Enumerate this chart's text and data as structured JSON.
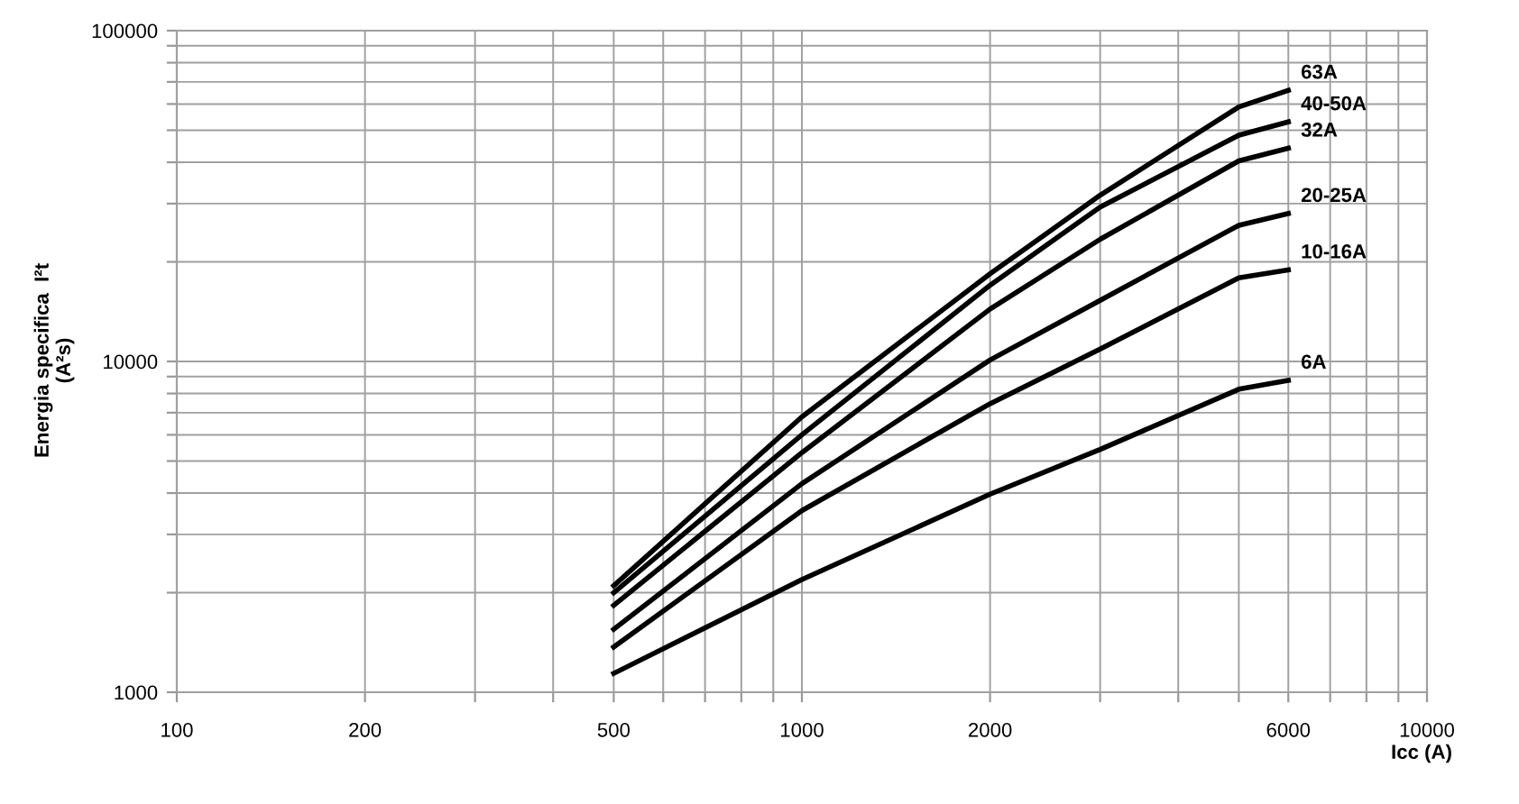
{
  "chart_data": {
    "type": "line",
    "xlabel": "Icc (A)",
    "ylabel": "Energia specifica  I²t\n(A²s)",
    "log": "xy",
    "grid": true,
    "legend": false,
    "marker": "none",
    "line_style": "solid",
    "xlim": [
      100,
      10000
    ],
    "ylim": [
      1000,
      100000
    ],
    "xticks": [
      100,
      200,
      {
        "value": 300,
        "label": null
      },
      {
        "value": 400,
        "label": null
      },
      500,
      {
        "value": 600,
        "label": null
      },
      {
        "value": 700,
        "label": null
      },
      {
        "value": 800,
        "label": null
      },
      {
        "value": 900,
        "label": null
      },
      1000,
      2000,
      {
        "value": 3000,
        "label": null
      },
      {
        "value": 4000,
        "label": null
      },
      {
        "value": 5000,
        "label": null
      },
      6000,
      {
        "value": 7000,
        "label": null
      },
      {
        "value": 8000,
        "label": null
      },
      {
        "value": 9000,
        "label": null
      },
      10000
    ],
    "yticks": [
      1000,
      {
        "value": 2000,
        "label": null
      },
      {
        "value": 3000,
        "label": null
      },
      {
        "value": 4000,
        "label": null
      },
      {
        "value": 5000,
        "label": null
      },
      {
        "value": 6000,
        "label": null
      },
      {
        "value": 7000,
        "label": null
      },
      {
        "value": 8000,
        "label": null
      },
      {
        "value": 9000,
        "label": null
      },
      10000,
      {
        "value": 20000,
        "label": null
      },
      {
        "value": 30000,
        "label": null
      },
      {
        "value": 40000,
        "label": null
      },
      {
        "value": 50000,
        "label": null
      },
      {
        "value": 60000,
        "label": null
      },
      {
        "value": 70000,
        "label": null
      },
      {
        "value": 80000,
        "label": null
      },
      {
        "value": 90000,
        "label": null
      },
      100000
    ],
    "x": [
      500,
      1000,
      2000,
      3000,
      5000,
      6000
    ],
    "series": [
      {
        "name": "63A",
        "color": "#000000",
        "values": [
          2100,
          6800,
          18400,
          31800,
          58800,
          66000
        ]
      },
      {
        "name": "40-50A",
        "color": "#000000",
        "values": [
          2000,
          6000,
          17000,
          29300,
          48300,
          53000
        ]
      },
      {
        "name": "32A",
        "color": "#000000",
        "values": [
          1830,
          5300,
          14400,
          23400,
          40400,
          44100
        ]
      },
      {
        "name": "20-25A",
        "color": "#000000",
        "values": [
          1550,
          4270,
          10100,
          15300,
          25800,
          28000
        ]
      },
      {
        "name": "10-16A",
        "color": "#000000",
        "values": [
          1370,
          3540,
          7450,
          10900,
          17900,
          18900
        ]
      },
      {
        "name": "6A",
        "color": "#000000",
        "values": [
          1140,
          2190,
          3970,
          5420,
          8240,
          8770
        ]
      }
    ]
  }
}
